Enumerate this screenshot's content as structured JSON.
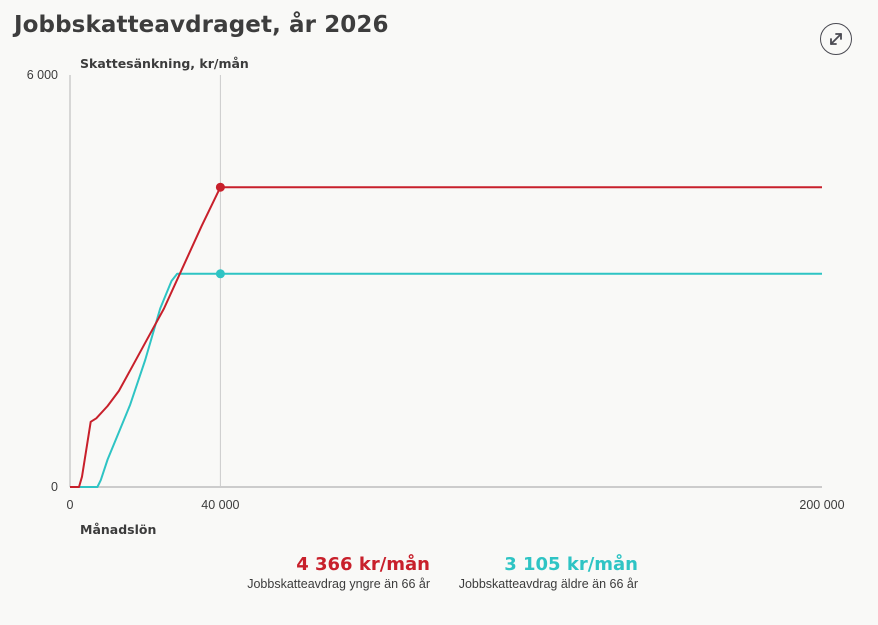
{
  "header": {
    "title": "Jobbskatteavdraget, år 2026",
    "expand_icon": "expand-arrows-icon"
  },
  "colors": {
    "young": "#c8202b",
    "old": "#2ec4c4",
    "axis": "#cccccc",
    "text": "#3c3c3c"
  },
  "legend": {
    "young": {
      "value": "4 366 kr/mån",
      "label": "Jobbskatteavdrag yngre än 66 år"
    },
    "old": {
      "value": "3 105 kr/mån",
      "label": "Jobbskatteavdrag äldre än 66 år"
    }
  },
  "chart_data": {
    "type": "line",
    "title": "Jobbskatteavdraget, år 2026",
    "xlabel": "Månadslön",
    "ylabel": "Skattesänkning, kr/mån",
    "xlim": [
      0,
      200000
    ],
    "ylim": [
      0,
      6000
    ],
    "x_ticks": [
      0,
      40000,
      200000
    ],
    "x_tick_labels": [
      "0",
      "40 000",
      "200 000"
    ],
    "y_ticks": [
      0,
      6000
    ],
    "y_tick_labels": [
      "0",
      "6 000"
    ],
    "grid": false,
    "marker_x": 40000,
    "series": [
      {
        "name": "Jobbskatteavdrag yngre än 66 år",
        "color": "#c8202b",
        "points": [
          [
            0,
            0
          ],
          [
            2400,
            0
          ],
          [
            3200,
            150
          ],
          [
            4500,
            600
          ],
          [
            5500,
            950
          ],
          [
            7000,
            1000
          ],
          [
            10000,
            1180
          ],
          [
            13000,
            1400
          ],
          [
            16000,
            1700
          ],
          [
            20000,
            2100
          ],
          [
            25000,
            2600
          ],
          [
            30000,
            3200
          ],
          [
            35000,
            3800
          ],
          [
            40000,
            4366
          ],
          [
            200000,
            4366
          ]
        ],
        "highlight": {
          "x": 40000,
          "y": 4366
        }
      },
      {
        "name": "Jobbskatteavdrag äldre än 66 år",
        "color": "#2ec4c4",
        "points": [
          [
            0,
            0
          ],
          [
            7300,
            0
          ],
          [
            8200,
            100
          ],
          [
            10000,
            400
          ],
          [
            13000,
            800
          ],
          [
            16000,
            1200
          ],
          [
            20000,
            1850
          ],
          [
            24000,
            2600
          ],
          [
            27000,
            3000
          ],
          [
            28500,
            3105
          ],
          [
            40000,
            3105
          ],
          [
            200000,
            3105
          ]
        ],
        "highlight": {
          "x": 40000,
          "y": 3105
        }
      }
    ]
  }
}
